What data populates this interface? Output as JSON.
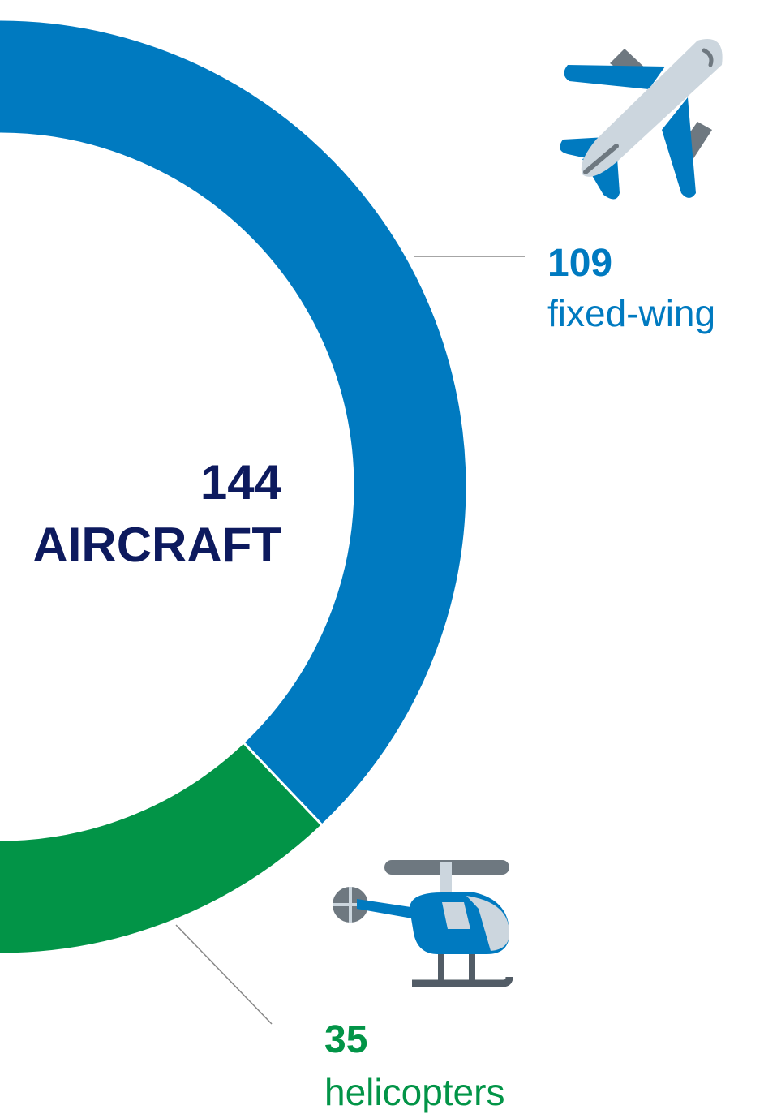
{
  "chart_data": {
    "type": "donut",
    "total": 144,
    "center_label": "AIRCRAFT",
    "categories": [
      "fixed-wing",
      "helicopters"
    ],
    "values": [
      109,
      35
    ],
    "colors": [
      "#007ac0",
      "#029447"
    ],
    "center_color": "#0d1a5e"
  }
}
